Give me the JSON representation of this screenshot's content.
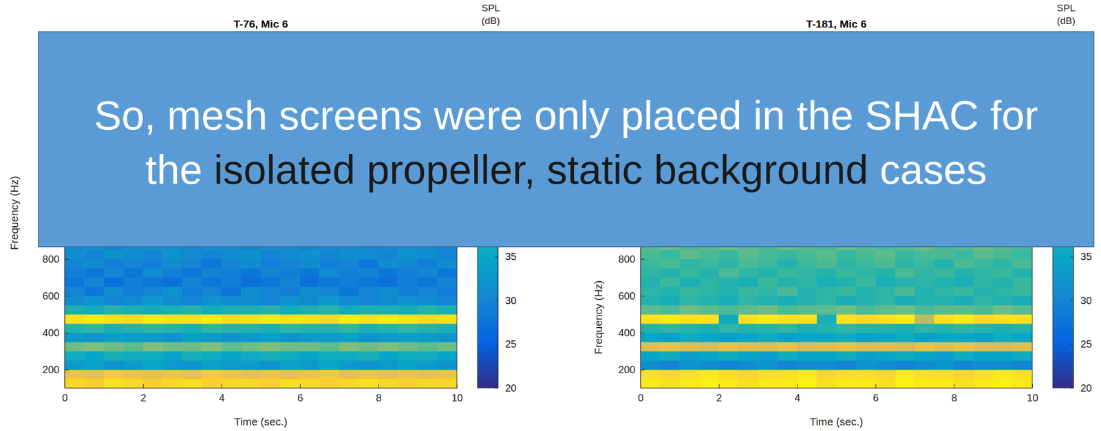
{
  "chart_data": [
    {
      "type": "heatmap",
      "title": "T-76, Mic 6",
      "xlabel": "Time (sec.)",
      "ylabel": "Frequency (Hz)",
      "xlim": [
        0,
        10
      ],
      "ylim": [
        100,
        2000
      ],
      "xticks": [
        0,
        2,
        4,
        6,
        8,
        10
      ],
      "yticks": [
        200,
        400,
        600,
        800
      ],
      "x_edges": [
        0,
        0.5,
        1,
        1.5,
        2,
        2.5,
        3,
        3.5,
        4,
        4.5,
        5,
        5.5,
        6,
        6.5,
        7,
        7.5,
        8,
        8.5,
        9,
        9.5,
        10
      ],
      "y_edges": [
        100,
        150,
        200,
        250,
        300,
        350,
        400,
        450,
        500,
        550,
        600,
        650,
        700,
        750,
        800,
        850,
        900
      ],
      "z": [
        [
          56,
          55,
          57,
          56,
          55,
          56,
          57,
          55,
          56,
          56,
          55,
          57,
          56,
          55,
          56,
          57,
          56,
          55,
          56,
          56
        ],
        [
          53,
          52,
          54,
          53,
          52,
          53,
          52,
          54,
          53,
          52,
          53,
          52,
          53,
          54,
          52,
          53,
          52,
          53,
          52,
          53
        ],
        [
          33,
          34,
          32,
          33,
          35,
          33,
          32,
          34,
          33,
          33,
          32,
          34,
          33,
          35,
          33,
          32,
          33,
          34,
          33,
          32
        ],
        [
          36,
          35,
          37,
          36,
          36,
          35,
          37,
          36,
          35,
          36,
          37,
          36,
          35,
          36,
          36,
          37,
          35,
          36,
          36,
          35
        ],
        [
          43,
          44,
          43,
          42,
          44,
          43,
          43,
          44,
          42,
          43,
          44,
          43,
          43,
          42,
          44,
          43,
          44,
          43,
          42,
          43
        ],
        [
          33,
          32,
          34,
          33,
          33,
          32,
          34,
          33,
          32,
          33,
          34,
          32,
          33,
          33,
          34,
          32,
          33,
          34,
          33,
          32
        ],
        [
          38,
          39,
          37,
          38,
          39,
          38,
          37,
          39,
          38,
          38,
          37,
          39,
          38,
          38,
          39,
          37,
          38,
          39,
          38,
          37
        ],
        [
          57,
          58,
          57,
          56,
          58,
          57,
          57,
          58,
          56,
          57,
          58,
          57,
          57,
          56,
          58,
          57,
          58,
          57,
          56,
          57
        ],
        [
          37,
          36,
          38,
          37,
          36,
          37,
          38,
          36,
          37,
          37,
          38,
          36,
          37,
          38,
          36,
          37,
          37,
          36,
          38,
          37
        ],
        [
          31,
          32,
          30,
          31,
          33,
          31,
          30,
          32,
          31,
          31,
          30,
          32,
          31,
          33,
          31,
          30,
          31,
          32,
          31,
          30
        ],
        [
          30,
          28,
          31,
          29,
          30,
          32,
          29,
          30,
          28,
          31,
          30,
          29,
          31,
          30,
          28,
          30,
          31,
          29,
          30,
          29
        ],
        [
          28,
          30,
          27,
          29,
          28,
          27,
          30,
          28,
          29,
          27,
          28,
          30,
          27,
          28,
          29,
          28,
          27,
          29,
          28,
          30
        ],
        [
          29,
          28,
          30,
          28,
          31,
          29,
          28,
          30,
          29,
          28,
          30,
          29,
          28,
          31,
          29,
          30,
          28,
          29,
          30,
          28
        ],
        [
          30,
          31,
          29,
          30,
          29,
          31,
          30,
          28,
          30,
          31,
          29,
          30,
          31,
          29,
          30,
          28,
          31,
          30,
          29,
          31
        ],
        [
          31,
          30,
          32,
          31,
          30,
          32,
          31,
          30,
          31,
          32,
          30,
          31,
          32,
          30,
          31,
          31,
          30,
          32,
          31,
          30
        ],
        [
          31,
          32,
          30,
          31,
          32,
          31,
          30,
          32,
          31,
          30,
          32,
          31,
          30,
          31,
          32,
          30,
          31,
          32,
          31,
          30
        ]
      ],
      "colorbar": {
        "title": "SPL (dB)",
        "range": [
          20,
          60
        ],
        "ticks": [
          20,
          25,
          30,
          35
        ]
      }
    },
    {
      "type": "heatmap",
      "title": "T-181, Mic 6",
      "xlabel": "Time (sec.)",
      "ylabel": "Frequency (Hz)",
      "xlim": [
        0,
        10
      ],
      "ylim": [
        100,
        2000
      ],
      "xticks": [
        0,
        2,
        4,
        6,
        8,
        10
      ],
      "yticks": [
        200,
        400,
        600,
        800
      ],
      "x_edges": [
        0,
        0.5,
        1,
        1.5,
        2,
        2.5,
        3,
        3.5,
        4,
        4.5,
        5,
        5.5,
        6,
        6.5,
        7,
        7.5,
        8,
        8.5,
        9,
        9.5,
        10
      ],
      "y_edges": [
        100,
        150,
        200,
        250,
        300,
        350,
        400,
        450,
        500,
        550,
        600,
        650,
        700,
        750,
        800,
        850,
        900
      ],
      "z": [
        [
          58,
          57,
          58,
          59,
          58,
          57,
          58,
          58,
          59,
          57,
          58,
          58,
          57,
          59,
          58,
          58,
          57,
          58,
          59,
          58
        ],
        [
          57,
          56,
          57,
          58,
          57,
          56,
          57,
          57,
          58,
          56,
          57,
          57,
          56,
          58,
          57,
          57,
          56,
          57,
          58,
          57
        ],
        [
          31,
          30,
          32,
          31,
          30,
          31,
          32,
          30,
          31,
          31,
          30,
          32,
          31,
          30,
          31,
          32,
          30,
          31,
          31,
          30
        ],
        [
          35,
          36,
          34,
          35,
          36,
          35,
          34,
          36,
          35,
          35,
          36,
          34,
          35,
          36,
          35,
          34,
          36,
          35,
          35,
          36
        ],
        [
          51,
          52,
          51,
          50,
          52,
          51,
          51,
          52,
          50,
          51,
          52,
          51,
          51,
          50,
          52,
          51,
          52,
          51,
          50,
          51
        ],
        [
          35,
          34,
          36,
          35,
          34,
          35,
          36,
          34,
          35,
          35,
          36,
          34,
          35,
          36,
          34,
          35,
          35,
          34,
          36,
          35
        ],
        [
          38,
          39,
          38,
          37,
          39,
          38,
          38,
          39,
          37,
          38,
          39,
          38,
          38,
          37,
          39,
          38,
          39,
          38,
          37,
          38
        ],
        [
          57,
          58,
          57,
          57,
          36,
          57,
          58,
          57,
          57,
          37,
          57,
          56,
          57,
          58,
          48,
          57,
          58,
          56,
          57,
          57
        ],
        [
          42,
          41,
          43,
          42,
          41,
          42,
          43,
          41,
          42,
          42,
          43,
          41,
          42,
          43,
          41,
          42,
          42,
          41,
          43,
          42
        ],
        [
          38,
          37,
          39,
          38,
          37,
          39,
          38,
          37,
          38,
          39,
          37,
          38,
          39,
          37,
          38,
          38,
          37,
          39,
          38,
          37
        ],
        [
          39,
          38,
          40,
          39,
          38,
          40,
          39,
          41,
          38,
          39,
          40,
          38,
          39,
          41,
          38,
          39,
          40,
          38,
          39,
          40
        ],
        [
          38,
          40,
          37,
          39,
          38,
          37,
          40,
          38,
          39,
          37,
          38,
          40,
          37,
          38,
          39,
          38,
          37,
          39,
          38,
          40
        ],
        [
          39,
          38,
          40,
          38,
          41,
          39,
          38,
          40,
          39,
          38,
          40,
          39,
          38,
          41,
          39,
          40,
          38,
          39,
          40,
          38
        ],
        [
          40,
          41,
          39,
          40,
          39,
          41,
          40,
          38,
          40,
          41,
          39,
          40,
          41,
          39,
          40,
          38,
          41,
          40,
          39,
          41
        ],
        [
          41,
          40,
          42,
          41,
          40,
          42,
          41,
          40,
          41,
          42,
          40,
          41,
          42,
          40,
          41,
          41,
          40,
          42,
          41,
          40
        ],
        [
          42,
          43,
          41,
          42,
          43,
          42,
          41,
          43,
          42,
          41,
          43,
          42,
          41,
          42,
          43,
          41,
          42,
          43,
          42,
          41
        ]
      ],
      "colorbar": {
        "title": "SPL (dB)",
        "range": [
          20,
          60
        ],
        "ticks": [
          20,
          25,
          30,
          35
        ]
      }
    }
  ],
  "overlay": {
    "lines": [
      [
        {
          "text": "So, mesh screens were only placed in the SHAC for",
          "emphasis": false
        }
      ],
      [
        {
          "text": "the ",
          "emphasis": false
        },
        {
          "text": "isolated propeller, static background",
          "emphasis": true
        },
        {
          "text": " cases",
          "emphasis": false
        }
      ]
    ]
  }
}
